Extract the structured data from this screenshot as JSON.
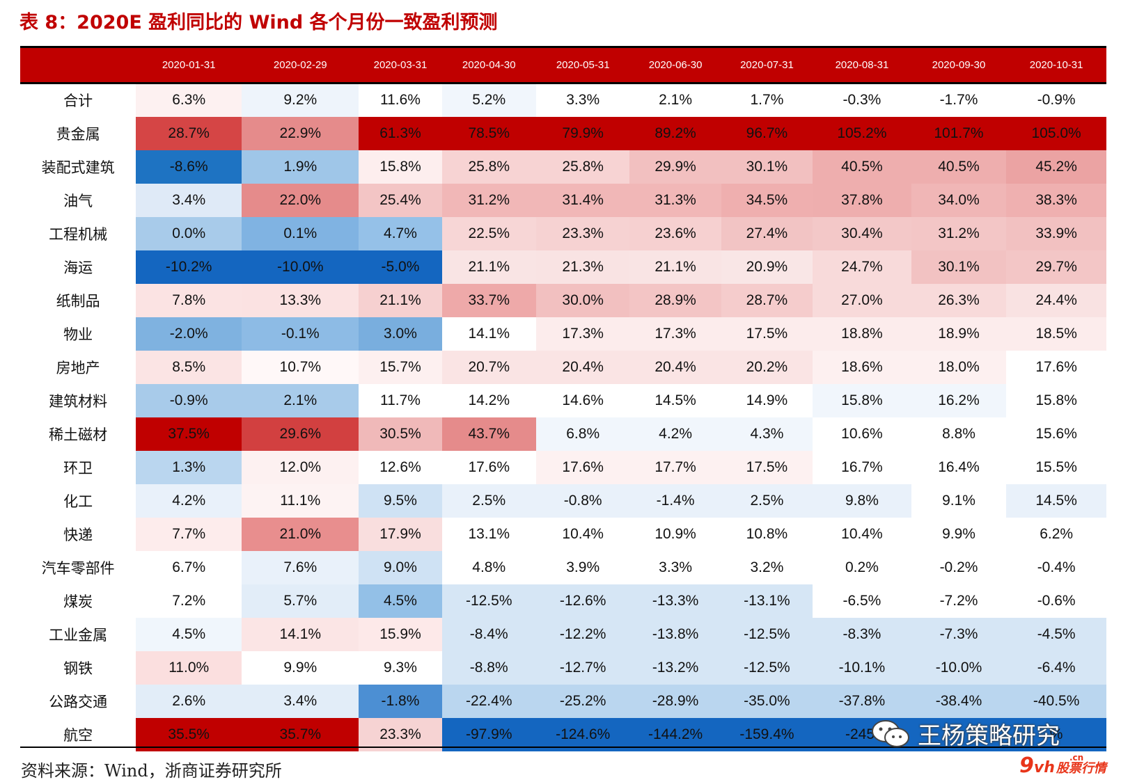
{
  "title": "表 8：2020E 盈利同比的 Wind 各个月份一致盈利预测",
  "source": "资料来源：Wind，浙商证券研究所",
  "watermark": "王杨策略研究",
  "logo": {
    "mark": "9",
    "vh": "vh",
    "cn": ".cn",
    "text": "股票行情"
  },
  "colors": {
    "header_bg": "#c00000",
    "title": "#c00000"
  },
  "table": {
    "columns": [
      "",
      "2020-01-31",
      "2020-02-29",
      "2020-03-31",
      "2020-04-30",
      "2020-05-31",
      "2020-06-30",
      "2020-07-31",
      "2020-08-31",
      "2020-09-30",
      "2020-10-31"
    ],
    "rows": [
      {
        "label": "合计",
        "values": [
          "6.3%",
          "9.2%",
          "11.6%",
          "5.2%",
          "3.3%",
          "2.1%",
          "1.7%",
          "-0.3%",
          "-1.7%",
          "-0.9%"
        ]
      },
      {
        "label": "贵金属",
        "values": [
          "28.7%",
          "22.9%",
          "61.3%",
          "78.5%",
          "79.9%",
          "89.2%",
          "96.7%",
          "105.2%",
          "101.7%",
          "105.0%"
        ]
      },
      {
        "label": "装配式建筑",
        "values": [
          "-8.6%",
          "1.9%",
          "15.8%",
          "25.8%",
          "25.8%",
          "29.9%",
          "30.1%",
          "40.5%",
          "40.5%",
          "45.2%"
        ]
      },
      {
        "label": "油气",
        "values": [
          "3.4%",
          "22.0%",
          "25.4%",
          "31.2%",
          "31.4%",
          "31.3%",
          "34.5%",
          "37.8%",
          "34.0%",
          "38.3%"
        ]
      },
      {
        "label": "工程机械",
        "values": [
          "0.0%",
          "0.1%",
          "4.7%",
          "22.5%",
          "23.3%",
          "23.6%",
          "27.4%",
          "30.4%",
          "31.2%",
          "33.9%"
        ]
      },
      {
        "label": "海运",
        "values": [
          "-10.2%",
          "-10.0%",
          "-5.0%",
          "21.1%",
          "21.3%",
          "21.1%",
          "20.9%",
          "24.7%",
          "30.1%",
          "29.7%"
        ]
      },
      {
        "label": "纸制品",
        "values": [
          "7.8%",
          "13.3%",
          "21.1%",
          "33.7%",
          "30.0%",
          "28.9%",
          "28.7%",
          "27.0%",
          "26.3%",
          "24.4%"
        ]
      },
      {
        "label": "物业",
        "values": [
          "-2.0%",
          "-0.1%",
          "3.0%",
          "14.1%",
          "17.3%",
          "17.3%",
          "17.5%",
          "18.8%",
          "18.9%",
          "18.5%"
        ]
      },
      {
        "label": "房地产",
        "values": [
          "8.5%",
          "10.7%",
          "15.7%",
          "20.7%",
          "20.4%",
          "20.4%",
          "20.2%",
          "18.6%",
          "18.0%",
          "17.6%"
        ]
      },
      {
        "label": "建筑材料",
        "values": [
          "-0.9%",
          "2.1%",
          "11.7%",
          "14.2%",
          "14.6%",
          "14.5%",
          "14.9%",
          "15.8%",
          "16.2%",
          "15.8%"
        ]
      },
      {
        "label": "稀土磁材",
        "values": [
          "37.5%",
          "29.6%",
          "30.5%",
          "43.7%",
          "6.8%",
          "4.2%",
          "4.3%",
          "10.6%",
          "8.8%",
          "15.6%"
        ]
      },
      {
        "label": "环卫",
        "values": [
          "1.3%",
          "12.0%",
          "12.6%",
          "17.6%",
          "17.6%",
          "17.7%",
          "17.5%",
          "16.7%",
          "16.4%",
          "15.5%"
        ]
      },
      {
        "label": "化工",
        "values": [
          "4.2%",
          "11.1%",
          "9.5%",
          "2.5%",
          "-0.8%",
          "-1.4%",
          "2.5%",
          "9.8%",
          "9.1%",
          "14.5%"
        ]
      },
      {
        "label": "快递",
        "values": [
          "7.7%",
          "21.0%",
          "17.9%",
          "13.1%",
          "10.4%",
          "10.9%",
          "10.8%",
          "10.4%",
          "9.9%",
          "6.2%"
        ]
      },
      {
        "label": "汽车零部件",
        "values": [
          "6.7%",
          "7.6%",
          "9.0%",
          "4.8%",
          "3.9%",
          "3.3%",
          "3.2%",
          "0.2%",
          "-0.2%",
          "-0.4%"
        ]
      },
      {
        "label": "煤炭",
        "values": [
          "7.2%",
          "5.7%",
          "4.5%",
          "-12.5%",
          "-12.6%",
          "-13.3%",
          "-13.1%",
          "-6.5%",
          "-7.2%",
          "-0.6%"
        ]
      },
      {
        "label": "工业金属",
        "values": [
          "4.5%",
          "14.1%",
          "15.9%",
          "-8.4%",
          "-12.2%",
          "-13.8%",
          "-12.5%",
          "-8.3%",
          "-7.3%",
          "-4.5%"
        ]
      },
      {
        "label": "钢铁",
        "values": [
          "11.0%",
          "9.9%",
          "9.3%",
          "-8.8%",
          "-12.7%",
          "-13.2%",
          "-12.5%",
          "-10.1%",
          "-10.0%",
          "-6.4%"
        ]
      },
      {
        "label": "公路交通",
        "values": [
          "2.6%",
          "3.4%",
          "-1.8%",
          "-22.4%",
          "-25.2%",
          "-28.9%",
          "-35.0%",
          "-37.8%",
          "-38.4%",
          "-40.5%"
        ]
      },
      {
        "label": "航空",
        "values": [
          "35.5%",
          "35.7%",
          "23.3%",
          "-97.9%",
          "-124.6%",
          "-144.2%",
          "-159.4%",
          "-245.",
          "",
          "%"
        ]
      }
    ],
    "cell_colors": [
      [
        "#fdf1f1",
        "#eef4fb",
        "#ffffff",
        "#f1f6fc",
        "#ffffff",
        "#ffffff",
        "#ffffff",
        "#ffffff",
        "#ffffff",
        "#ffffff"
      ],
      [
        "#d54545",
        "#e58b8b",
        "#c00000",
        "#c00000",
        "#c00000",
        "#c00000",
        "#c00000",
        "#c00000",
        "#c00000",
        "#c00000"
      ],
      [
        "#1e73c2",
        "#9fc6e8",
        "#fdeeee",
        "#f7d3d3",
        "#f7d3d3",
        "#f2c0c0",
        "#f2c0c0",
        "#eeaeae",
        "#eeaeae",
        "#eba3a3"
      ],
      [
        "#dfeaf7",
        "#e58b8b",
        "#f3c5c5",
        "#f1b7b7",
        "#f1b7b7",
        "#f1b7b7",
        "#efafaf",
        "#eeaeae",
        "#f0b6b6",
        "#efb0b0"
      ],
      [
        "#a8cbea",
        "#80b3e2",
        "#95c1e8",
        "#f7d6d6",
        "#f6d2d2",
        "#f6d0d0",
        "#f2c4c4",
        "#f3c8c8",
        "#f3c6c6",
        "#f2c1c1"
      ],
      [
        "#1466c0",
        "#1466c0",
        "#1466c0",
        "#f9e4e4",
        "#f9e3e3",
        "#f9e4e4",
        "#f9e6e6",
        "#f8dada",
        "#f2c2c2",
        "#f3c6c6"
      ],
      [
        "#fbe3e3",
        "#fbe2e2",
        "#f6d0d0",
        "#eea9a9",
        "#f2c0c0",
        "#f3c5c5",
        "#f5cccc",
        "#f8dada",
        "#f8dada",
        "#f9e2e2"
      ],
      [
        "#7fb2e0",
        "#8dbbe5",
        "#79aede",
        "#ffffff",
        "#fcecec",
        "#fcecec",
        "#fcecec",
        "#fcecec",
        "#fcecec",
        "#fcecec"
      ],
      [
        "#fbe4e4",
        "#fff8f8",
        "#fdf0f0",
        "#fae4e4",
        "#fae4e4",
        "#fae4e4",
        "#fae4e4",
        "#fdf0f0",
        "#fdf0f0",
        "#ffffff"
      ],
      [
        "#a8cbea",
        "#a8cbea",
        "#ffffff",
        "#ffffff",
        "#ffffff",
        "#ffffff",
        "#ffffff",
        "#f1f6fc",
        "#f1f6fc",
        "#ffffff"
      ],
      [
        "#c00000",
        "#d24040",
        "#f0b9b9",
        "#e58b8b",
        "#f1f6fc",
        "#f1f6fc",
        "#f1f6fc",
        "#ffffff",
        "#ffffff",
        "#ffffff"
      ],
      [
        "#bad6ef",
        "#fdf1f1",
        "#ffffff",
        "#ffffff",
        "#fdf1f1",
        "#fdf1f1",
        "#fdf1f1",
        "#ffffff",
        "#ffffff",
        "#ffffff"
      ],
      [
        "#e9f1fa",
        "#fdf3f3",
        "#cfe2f4",
        "#e9f1fa",
        "#e9f1fa",
        "#e9f1fa",
        "#e9f1fa",
        "#e9f1fa",
        "#ffffff",
        "#e9f1fa"
      ],
      [
        "#fdecec",
        "#e88e8e",
        "#f9dede",
        "#ffffff",
        "#ffffff",
        "#ffffff",
        "#ffffff",
        "#ffffff",
        "#ffffff",
        "#ffffff"
      ],
      [
        "#ffffff",
        "#e9f1fa",
        "#cfe2f4",
        "#ffffff",
        "#ffffff",
        "#ffffff",
        "#ffffff",
        "#ffffff",
        "#ffffff",
        "#ffffff"
      ],
      [
        "#ffffff",
        "#e2edf8",
        "#93c0e7",
        "#d6e6f5",
        "#d6e6f5",
        "#d6e6f5",
        "#d6e6f5",
        "#ffffff",
        "#ffffff",
        "#ffffff"
      ],
      [
        "#f0f6fc",
        "#fbe5e5",
        "#fde9e9",
        "#d6e6f5",
        "#d6e6f5",
        "#d6e6f5",
        "#d6e6f5",
        "#d6e6f5",
        "#d6e6f5",
        "#d6e6f5"
      ],
      [
        "#fbdfdf",
        "#ffffff",
        "#ffffff",
        "#d6e6f5",
        "#d6e6f5",
        "#d6e6f5",
        "#d6e6f5",
        "#d6e6f5",
        "#d6e6f5",
        "#d6e6f5"
      ],
      [
        "#e2edf8",
        "#e2edf8",
        "#4c8fd3",
        "#bad6ef",
        "#bad6ef",
        "#bad6ef",
        "#bad6ef",
        "#bad6ef",
        "#bad6ef",
        "#bad6ef"
      ],
      [
        "#c00000",
        "#c00000",
        "#f6d3d3",
        "#1466c0",
        "#1466c0",
        "#1466c0",
        "#1466c0",
        "#1466c0",
        "#1466c0",
        "#1466c0"
      ]
    ]
  }
}
